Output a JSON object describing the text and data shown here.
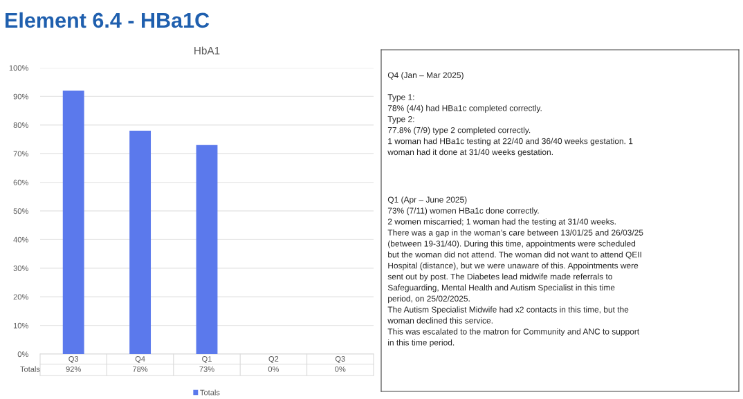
{
  "chart_data": [
    {
      "type": "bar",
      "title": "HbA1",
      "annotations": [
        "Element 6.4 - HBa1C"
      ],
      "categories": [
        "Q3",
        "Q4",
        "Q1",
        "Q2",
        "Q3"
      ],
      "series": [
        {
          "name": "Totals",
          "color": "#5b79ec",
          "values": [
            92,
            78,
            73,
            0,
            0
          ],
          "value_labels": [
            "92%",
            "78%",
            "73%",
            "0%",
            "0%"
          ]
        }
      ],
      "ylim": [
        0,
        100
      ],
      "yticks": [
        {
          "value": 0,
          "label": "0%"
        },
        {
          "value": 10,
          "label": "10%"
        },
        {
          "value": 20,
          "label": "20%"
        },
        {
          "value": 30,
          "label": "30%"
        },
        {
          "value": 40,
          "label": "40%"
        },
        {
          "value": 50,
          "label": "50%"
        },
        {
          "value": 60,
          "label": "60%"
        },
        {
          "value": 70,
          "label": "70%"
        },
        {
          "value": 80,
          "label": "80%"
        },
        {
          "value": 90,
          "label": "90%"
        },
        {
          "value": 100,
          "label": "100%"
        }
      ],
      "grid": "y",
      "legend": "bottom"
    },
    {
      "type": "other",
      "annotations": [
        "Q4 (Jan – Mar 2025)\n\nType 1:\n78% (4/4) had HBa1c completed correctly.\nType 2:\n77.8% (7/9) type 2 completed correctly.\n1 woman had HBa1c testing at 22/40 and 36/40 weeks gestation. 1\nwoman had it done at 31/40 weeks gestation.",
        "Q1 (Apr – June 2025)\n73% (7/11) women HBa1c done correctly.\n2 women miscarried; 1 woman had the testing at 31/40 weeks.\nThere was a gap in the woman’s care between 13/01/25 and 26/03/25\n(between 19-31/40). During this time, appointments were scheduled\nbut the woman did not attend. The woman did not want to attend QEII\nHospital (distance), but we were unaware of this. Appointments were\nsent out by post. The Diabetes lead midwife made referrals to\nSafeguarding, Mental Health and Autism Specialist in this time\nperiod, on 25/02/2025.\nThe Autism Specialist Midwife had x2 contacts in this time, but the\nwoman declined this service.\nThis was escalated to the matron for Community and ANC to support\nin this time period."
      ]
    }
  ]
}
